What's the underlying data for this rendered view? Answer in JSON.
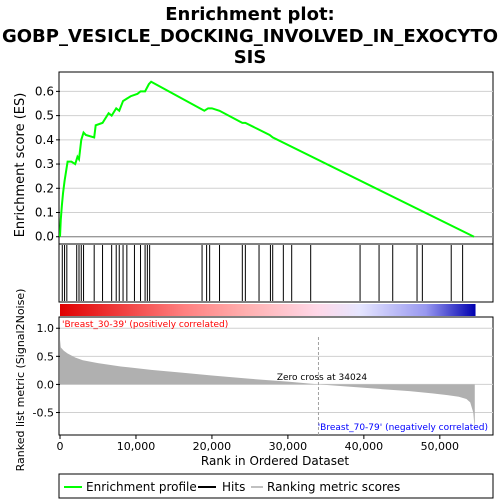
{
  "title_line1": "Enrichment plot:",
  "title_line2": "GOBP_VESICLE_DOCKING_INVOLVED_IN_EXOCYTO",
  "title_line3": "SIS",
  "colors": {
    "es_line": "#00ff00",
    "hits": "#000000",
    "metric_fill": "#b0b0b0",
    "pos_label": "#ff0000",
    "neg_label": "#0000ff",
    "grid": "#d0d0d0"
  },
  "chart_data": [
    {
      "type": "line",
      "name": "enrichment-score-panel",
      "ylabel": "Enrichment score (ES)",
      "ylim": [
        -0.03,
        0.68
      ],
      "xlim": [
        0,
        57000
      ],
      "yticks": [
        0.0,
        0.1,
        0.2,
        0.3,
        0.4,
        0.5,
        0.6
      ],
      "ytick_labels": [
        "0.0",
        "0.1",
        "0.2",
        "0.3",
        "0.4",
        "0.5",
        "0.6"
      ],
      "grid": true,
      "series": [
        {
          "name": "Enrichment profile",
          "x": [
            0,
            100,
            250,
            400,
            600,
            800,
            1000,
            1200,
            1500,
            2000,
            2300,
            2500,
            2800,
            3100,
            3400,
            4500,
            4700,
            5600,
            6400,
            6800,
            7400,
            7800,
            8300,
            8800,
            9300,
            10200,
            10600,
            11200,
            11700,
            12000,
            19000,
            19500,
            20000,
            21000,
            24000,
            24400,
            27600,
            28000,
            54500
          ],
          "y": [
            0.0,
            0.07,
            0.13,
            0.18,
            0.23,
            0.27,
            0.31,
            0.31,
            0.31,
            0.3,
            0.33,
            0.32,
            0.4,
            0.43,
            0.42,
            0.41,
            0.46,
            0.47,
            0.51,
            0.5,
            0.53,
            0.52,
            0.56,
            0.57,
            0.58,
            0.59,
            0.6,
            0.6,
            0.63,
            0.64,
            0.52,
            0.53,
            0.53,
            0.52,
            0.47,
            0.47,
            0.42,
            0.41,
            0.0
          ]
        }
      ]
    },
    {
      "type": "hits",
      "name": "hits-panel",
      "hit_positions": [
        300,
        600,
        900,
        2200,
        2500,
        2800,
        3100,
        4500,
        5600,
        6800,
        7400,
        7800,
        8300,
        8800,
        9800,
        10600,
        11200,
        11500,
        11800,
        18700,
        19300,
        19700,
        21000,
        24000,
        24400,
        26200,
        27700,
        28000,
        29400,
        30500,
        33000,
        39500,
        42000,
        43800,
        47000,
        47700,
        51500,
        53000
      ],
      "gradient": [
        {
          "offset": 0,
          "color": "#e00000"
        },
        {
          "offset": 0.3,
          "color": "#ff8080"
        },
        {
          "offset": 0.45,
          "color": "#ffb0b0"
        },
        {
          "offset": 0.62,
          "color": "#ffd8e8"
        },
        {
          "offset": 0.72,
          "color": "#e6e6ff"
        },
        {
          "offset": 0.88,
          "color": "#9898f0"
        },
        {
          "offset": 1,
          "color": "#0000b0"
        }
      ]
    },
    {
      "type": "area",
      "name": "ranked-metric-panel",
      "ylabel": "Ranked list metric (Signal2Noise)",
      "xlabel": "Rank in Ordered Dataset",
      "xlim": [
        0,
        57000
      ],
      "ylim": [
        -0.9,
        1.2
      ],
      "yticks": [
        -0.5,
        0.0,
        0.5,
        1.0
      ],
      "ytick_labels": [
        "-0.5",
        "0.0",
        "0.5",
        "1.0"
      ],
      "xticks": [
        0,
        10000,
        20000,
        30000,
        40000,
        50000
      ],
      "xtick_labels": [
        "0",
        "10,000",
        "20,000",
        "30,000",
        "40,000",
        "50,000"
      ],
      "series": [
        {
          "name": "Ranking metric scores",
          "x": [
            0,
            100,
            500,
            1000,
            2000,
            3000,
            5000,
            8000,
            12000,
            16000,
            20000,
            25000,
            30000,
            34024,
            38000,
            42000,
            46000,
            49000,
            51000,
            52500,
            53500,
            54000,
            54400,
            54600
          ],
          "y": [
            0.8,
            0.66,
            0.6,
            0.55,
            0.48,
            0.43,
            0.38,
            0.32,
            0.26,
            0.21,
            0.16,
            0.1,
            0.05,
            0.0,
            -0.04,
            -0.08,
            -0.12,
            -0.16,
            -0.19,
            -0.22,
            -0.26,
            -0.32,
            -0.5,
            -0.8
          ]
        }
      ],
      "zero_cross": 34024,
      "annotations": {
        "zero_cross_text": "Zero cross at 34024",
        "pos_label": "'Breast_30-39' (positively correlated)",
        "neg_label": "'Breast_70-79' (negatively correlated)"
      }
    }
  ],
  "legend": {
    "placement": "bottom",
    "items": [
      {
        "label": "Enrichment profile",
        "color": "#00ff00"
      },
      {
        "label": "Hits",
        "color": "#000000"
      },
      {
        "label": "Ranking metric scores",
        "color": "#c0c0c0"
      }
    ]
  }
}
